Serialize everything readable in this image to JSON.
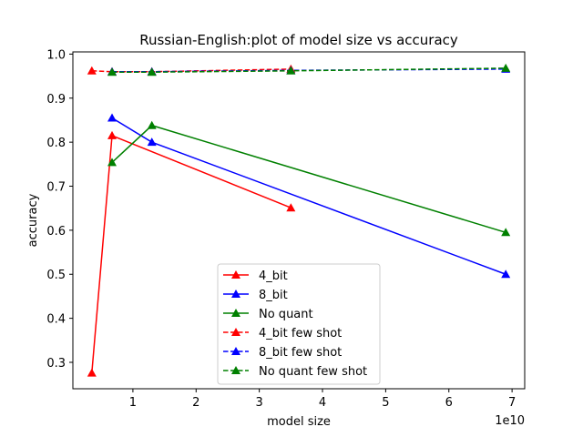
{
  "chart_data": {
    "type": "line",
    "title": "Russian-English:plot of model size vs accuracy",
    "xlabel": "model size",
    "ylabel": "accuracy",
    "x_offset_label": "1e10",
    "xlim": [
      0.05,
      7.2
    ],
    "ylim": [
      0.24,
      1.005
    ],
    "x_ticks": [
      1,
      2,
      3,
      4,
      5,
      6,
      7
    ],
    "y_ticks": [
      0.3,
      0.4,
      0.5,
      0.6,
      0.7,
      0.8,
      0.9,
      1.0
    ],
    "x_tick_labels": [
      "1",
      "2",
      "3",
      "4",
      "5",
      "6",
      "7"
    ],
    "y_tick_labels": [
      "0.3",
      "0.4",
      "0.5",
      "0.6",
      "0.7",
      "0.8",
      "0.9",
      "1.0"
    ],
    "grid": false,
    "legend_position": "lower-center",
    "series": [
      {
        "name": "4_bit",
        "color": "#ff0000",
        "dashed": false,
        "x": [
          0.35,
          0.67,
          3.5
        ],
        "y": [
          0.276,
          0.815,
          0.651
        ]
      },
      {
        "name": "8_bit",
        "color": "#0000ff",
        "dashed": false,
        "x": [
          0.67,
          1.3,
          6.9
        ],
        "y": [
          0.855,
          0.8,
          0.5
        ]
      },
      {
        "name": "No quant",
        "color": "#008000",
        "dashed": false,
        "x": [
          0.67,
          1.3,
          6.9
        ],
        "y": [
          0.754,
          0.838,
          0.595
        ]
      },
      {
        "name": "4_bit few shot",
        "color": "#ff0000",
        "dashed": true,
        "x": [
          0.35,
          0.67,
          1.3,
          3.5
        ],
        "y": [
          0.962,
          0.96,
          0.96,
          0.966
        ]
      },
      {
        "name": "8_bit few shot",
        "color": "#0000ff",
        "dashed": true,
        "x": [
          0.67,
          1.3,
          3.5,
          6.9
        ],
        "y": [
          0.96,
          0.96,
          0.963,
          0.966
        ]
      },
      {
        "name": "No quant few shot",
        "color": "#008000",
        "dashed": true,
        "x": [
          0.67,
          1.3,
          3.5,
          6.9
        ],
        "y": [
          0.959,
          0.959,
          0.962,
          0.968
        ]
      }
    ]
  }
}
